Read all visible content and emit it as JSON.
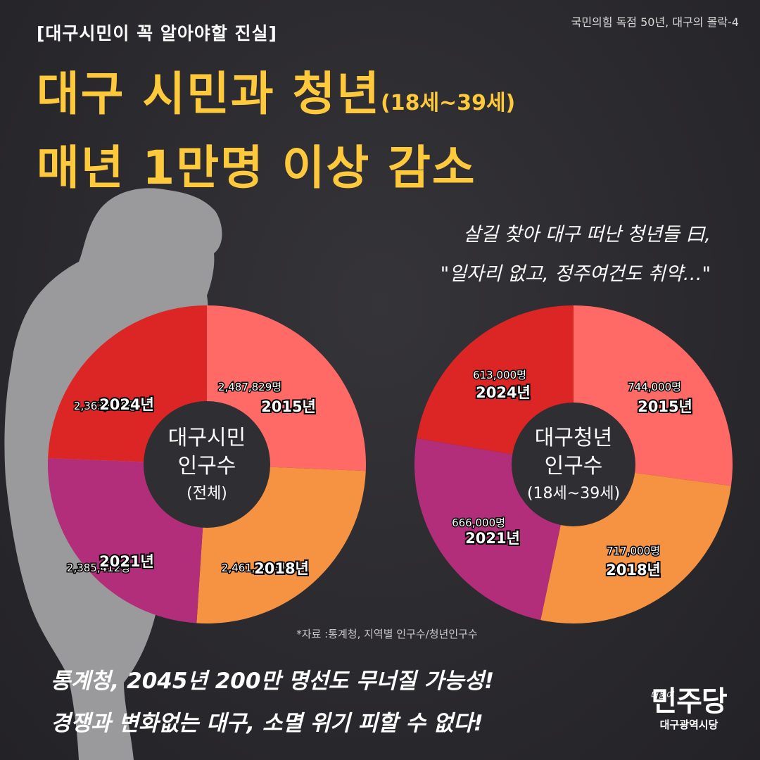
{
  "header": {
    "tag": "[대구시민이 꼭 알아야할 진실]",
    "series": "국민의힘 독점 50년, 대구의 몰락-4",
    "title_line1": "대구 시민과 청년",
    "title_line1_sub": "(18세~39세)",
    "title_line2": "매년 1만명 이상 감소"
  },
  "quote": {
    "line1": "살길 찾아 대구 떠난 청년들 曰,",
    "line2": "\"일자리 없고, 정주여건도 취약…\""
  },
  "chart_data": [
    {
      "type": "pie",
      "center_label": [
        "대구시민",
        "인구수",
        "(전체)"
      ],
      "slices": [
        {
          "year": "2015년",
          "value": 2487829,
          "value_label": "2,487,829명",
          "color": "#ff6966"
        },
        {
          "year": "2018년",
          "value": 2461769,
          "value_label": "2,461,769명",
          "color": "#f59342"
        },
        {
          "year": "2021년",
          "value": 2385412,
          "value_label": "2,385,412명",
          "color": "#b32e7a"
        },
        {
          "year": "2024년",
          "value": 2363629,
          "value_label": "2,363,629명",
          "color": "#dc2626"
        }
      ]
    },
    {
      "type": "pie",
      "center_label": [
        "대구청년",
        "인구수",
        "(18세~39세)"
      ],
      "slices": [
        {
          "year": "2015년",
          "value": 744000,
          "value_label": "744,000명",
          "color": "#ff6966"
        },
        {
          "year": "2018년",
          "value": 717000,
          "value_label": "717,000명",
          "color": "#f59342"
        },
        {
          "year": "2021년",
          "value": 666000,
          "value_label": "666,000명",
          "color": "#b32e7a"
        },
        {
          "year": "2024년",
          "value": 613000,
          "value_label": "613,000명",
          "color": "#dc2626"
        }
      ]
    }
  ],
  "source": "*자료 :통계청, 지역별 인구수/청년인구수",
  "bottom": {
    "line1": "통계청, 2045년 200만 명선도 무너질 가능성!",
    "line2": "경쟁과 변화없는 대구, 소멸 위기 피할 수 없다!"
  },
  "logo": {
    "small": "더불어",
    "main": "민주당",
    "region": "대구광역시당"
  }
}
